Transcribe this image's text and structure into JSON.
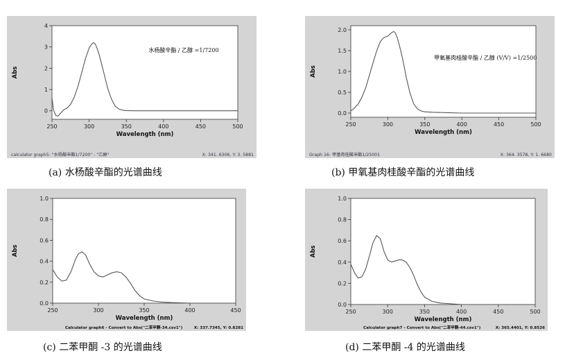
{
  "charts": [
    {
      "caption": "(a) 水杨酸辛酯的光谱曲线",
      "chart_data": {
        "type": "line",
        "xlabel": "Wavelength (nm)",
        "ylabel": "Abs",
        "xlim": [
          250,
          500
        ],
        "ylim": [
          -0.4,
          4
        ],
        "xticks": [
          250,
          300,
          350,
          400,
          450,
          500
        ],
        "yticks": [
          0,
          1,
          2,
          3,
          4
        ],
        "annotation": "水杨酸辛酯 / 乙醇 =1/7200",
        "footer_left": "calculator graph5- \"水杨酸辛酯1/7200\" - \"乙醇\"",
        "footer_right": "X: 341. 6306, Y: 3. 5881",
        "series": [
          {
            "x": [
              250,
              252,
              255,
              258,
              262,
              266,
              270,
              275,
              280,
              285,
              290,
              295,
              300,
              303,
              306,
              308,
              310,
              313,
              316,
              320,
              325,
              330,
              335,
              340,
              345,
              350,
              360,
              380,
              400,
              450,
              500
            ],
            "y": [
              0.6,
              0.05,
              -0.22,
              -0.25,
              -0.1,
              0.05,
              0.12,
              0.3,
              0.65,
              1.15,
              1.8,
              2.45,
              2.95,
              3.12,
              3.2,
              3.15,
              3.0,
              2.7,
              2.3,
              1.75,
              1.05,
              0.55,
              0.22,
              0.08,
              0.03,
              0.01,
              0,
              0,
              0,
              0,
              0
            ]
          }
        ]
      }
    },
    {
      "caption": "(b) 甲氧基肉桂酸辛酯的光谱曲线",
      "chart_data": {
        "type": "line",
        "xlabel": "Wavelength (nm)",
        "ylabel": "Abs",
        "xlim": [
          250,
          500
        ],
        "ylim": [
          -0.1,
          2.1
        ],
        "xticks": [
          250,
          300,
          350,
          400,
          450,
          500
        ],
        "yticks": [
          0.0,
          0.5,
          1.0,
          1.5,
          2.0
        ],
        "annotation": "甲氧基肉桂酸辛酯 / 乙醇 (V/V) =1/2500",
        "footer_left": "Graph 16- 甲基肉桂酸辛酯1/25001",
        "footer_right": "X: 364. 3578, Y: 1. 6680",
        "series": [
          {
            "x": [
              250,
              255,
              260,
              265,
              270,
              275,
              280,
              285,
              290,
              295,
              300,
              305,
              308,
              310,
              313,
              316,
              320,
              325,
              330,
              335,
              340,
              345,
              350,
              360,
              380,
              400,
              450,
              500
            ],
            "y": [
              0.05,
              0.12,
              0.22,
              0.38,
              0.6,
              0.9,
              1.2,
              1.5,
              1.72,
              1.82,
              1.85,
              1.93,
              1.96,
              1.93,
              1.8,
              1.6,
              1.3,
              0.85,
              0.48,
              0.22,
              0.1,
              0.05,
              0.03,
              0.02,
              0.01,
              0,
              0,
              0
            ]
          }
        ]
      }
    },
    {
      "caption": "(c) 二苯甲酮 -3 的光谱曲线",
      "chart_data": {
        "type": "line",
        "xlabel": "Wavelength (nm)",
        "ylabel": "Abs",
        "xlim": [
          250,
          450
        ],
        "ylim": [
          0,
          1
        ],
        "xticks": [
          250,
          300,
          350,
          400,
          450
        ],
        "yticks": [
          0.0,
          0.2,
          0.4,
          0.6,
          0.8,
          1.0
        ],
        "footer_left": "Calculator graph6 - Convert to Abs(\"二苯甲酮-34.csv1\")",
        "footer_right": "X: 337.7345, Y: 0.8281",
        "series": [
          {
            "x": [
              250,
              255,
              260,
              265,
              270,
              275,
              278,
              282,
              286,
              290,
              295,
              300,
              305,
              310,
              315,
              320,
              325,
              330,
              335,
              340,
              345,
              350,
              360,
              370,
              380,
              400,
              450
            ],
            "y": [
              0.32,
              0.25,
              0.21,
              0.22,
              0.3,
              0.42,
              0.47,
              0.49,
              0.46,
              0.38,
              0.3,
              0.26,
              0.25,
              0.27,
              0.29,
              0.3,
              0.29,
              0.25,
              0.19,
              0.12,
              0.07,
              0.04,
              0.02,
              0.01,
              0.005,
              0,
              0
            ]
          }
        ]
      }
    },
    {
      "caption": "(d) 二苯甲酮 -4 的光谱曲线",
      "chart_data": {
        "type": "line",
        "xlabel": "Wavelength (nm)",
        "ylabel": "Abs",
        "xlim": [
          250,
          500
        ],
        "ylim": [
          0,
          1
        ],
        "xticks": [
          250,
          300,
          350,
          400,
          450,
          500
        ],
        "yticks": [
          0.0,
          0.2,
          0.4,
          0.6,
          0.8,
          1.0
        ],
        "footer_left": "Calculator graph7 - Convert to Abs(\"二苯甲酮-44.csv1\")",
        "footer_right": "X: 365.4401, Y: 0.8526",
        "series": [
          {
            "x": [
              250,
              255,
              260,
              265,
              270,
              275,
              280,
              285,
              290,
              295,
              300,
              305,
              310,
              315,
              320,
              325,
              330,
              335,
              340,
              345,
              350,
              360,
              370,
              380,
              400,
              450,
              500
            ],
            "y": [
              0.38,
              0.3,
              0.25,
              0.26,
              0.33,
              0.45,
              0.58,
              0.65,
              0.62,
              0.5,
              0.42,
              0.4,
              0.41,
              0.42,
              0.42,
              0.4,
              0.35,
              0.28,
              0.19,
              0.12,
              0.07,
              0.03,
              0.015,
              0.01,
              0,
              0,
              0
            ]
          }
        ]
      }
    }
  ]
}
